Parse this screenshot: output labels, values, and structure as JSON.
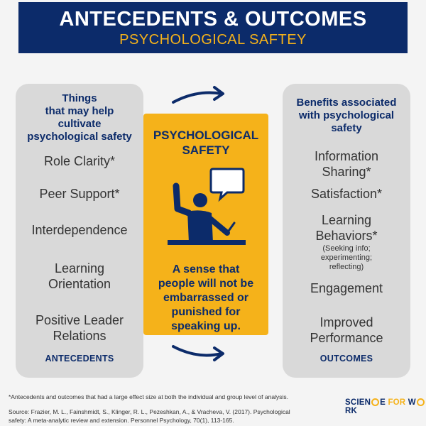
{
  "header": {
    "title": "ANTECEDENTS & OUTCOMES",
    "subtitle": "PSYCHOLOGICAL SAFTEY"
  },
  "antecedents": {
    "heading": [
      "Things",
      "that may help",
      "cultivate",
      "psychological safety"
    ],
    "items": [
      "Role Clarity*",
      "Peer Support*",
      "Interdependence",
      [
        "Learning",
        "Orientation"
      ],
      [
        "Positive Leader",
        "Relations"
      ]
    ],
    "footer": "ANTECEDENTS"
  },
  "center": {
    "title": [
      "PSYCHOLOGICAL",
      "SAFETY"
    ],
    "icon": "speaking-person-icon",
    "description": [
      "A sense that",
      "people will not be",
      "embarrassed or",
      "punished for",
      "speaking up."
    ]
  },
  "outcomes": {
    "heading": [
      "Benefits associated",
      "with psychological",
      "safety"
    ],
    "items": [
      [
        "Information",
        "Sharing*"
      ],
      "Satisfaction*",
      [
        "Learning",
        "Behaviors*"
      ],
      "Engagement",
      [
        "Improved",
        "Performance"
      ]
    ],
    "learning_note": [
      "(Seeking info;",
      "experimenting;",
      "reflecting)"
    ],
    "footer": "OUTCOMES"
  },
  "footnote": "*Antecedents and outcomes that had a large effect size at both the individual and group level of analysis.",
  "source": [
    "Source: Frazier, M. L., Fainshmidt, S., Klinger, R. L., Pezeshkan, A., & Vracheva, V. (2017). Psychological",
    "safety: A meta-analytic review and extension. Personnel Psychology, 70(1), 113-165."
  ],
  "logo": {
    "part1": "SCIEN",
    "part2": "E",
    "part3": "FOR",
    "part4": "W",
    "part5": "RK"
  },
  "colors": {
    "navy": "#0c2b6a",
    "gold": "#f5b21a",
    "gray": "#d9d9d9"
  }
}
